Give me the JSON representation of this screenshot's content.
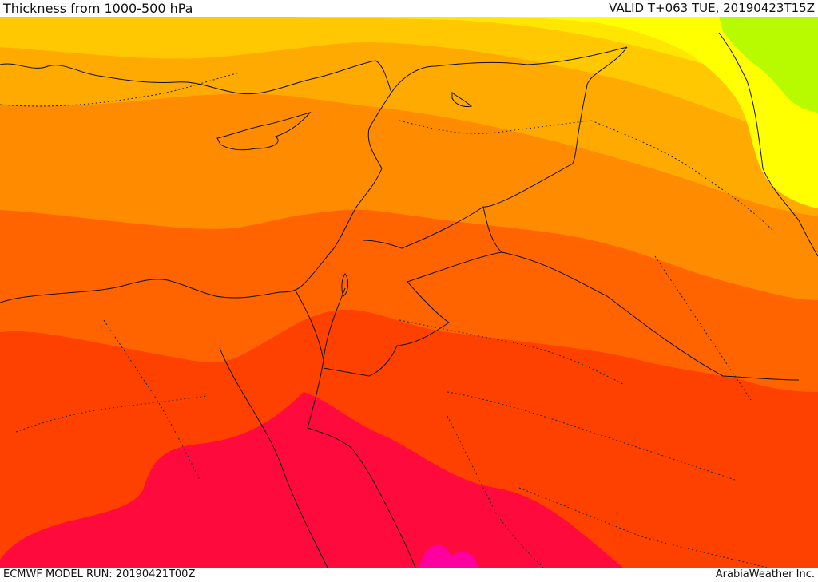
{
  "header": {
    "title": "Thickness from 1000-500 hPa",
    "valid": "VALID T+063 TUE, 20190423T15Z"
  },
  "footer": {
    "model_run": "ECMWF MODEL RUN: 20190421T00Z",
    "credit": "ArabiaWeather Inc."
  },
  "colors": {
    "lime": "#b8fa00",
    "yellow": "#ffff00",
    "light_yellow": "#ffe600",
    "gold": "#ffc800",
    "amber": "#ffaa00",
    "orange": "#ff8c00",
    "dark_orange": "#ff6400",
    "red_orange": "#ff4100",
    "crimson": "#ff0a3c",
    "magenta": "#ff00a0"
  }
}
